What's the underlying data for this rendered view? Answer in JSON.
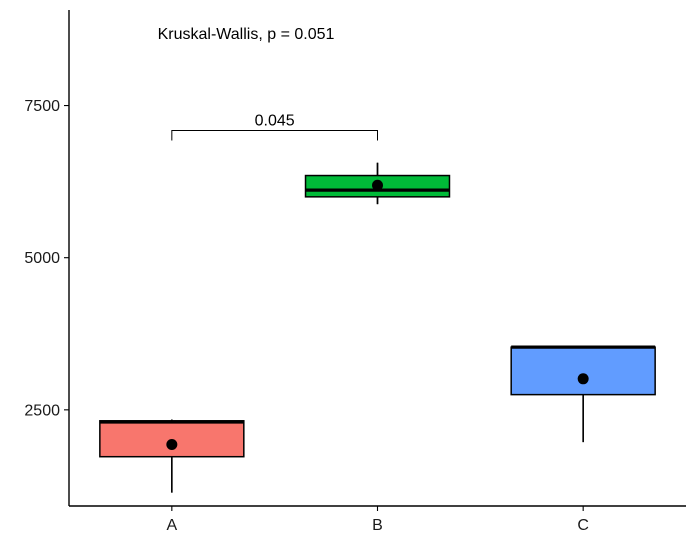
{
  "chart_data": {
    "type": "box",
    "categories": [
      "A",
      "B",
      "C"
    ],
    "ylim": [
      920,
      9070
    ],
    "yticks": [
      2500,
      5000,
      7500
    ],
    "ytick_labels": [
      "2500",
      "5000",
      "7500"
    ],
    "grid": false,
    "legend": "none",
    "boxes": [
      {
        "category": "A",
        "q1": 1730,
        "median": 2300,
        "q3": 2320,
        "mean": 1930,
        "low": 1140,
        "high": 2340,
        "color": "#F8766D"
      },
      {
        "category": "B",
        "q1": 6000,
        "median": 6110,
        "q3": 6350,
        "mean": 6190,
        "low": 5880,
        "high": 6560,
        "color": "#00BA38"
      },
      {
        "category": "C",
        "q1": 2750,
        "median": 3530,
        "q3": 3530,
        "mean": 3010,
        "low": 1970,
        "high": 3530,
        "color": "#619CFF"
      }
    ],
    "global_test": "Kruskal-Wallis, p = 0.051",
    "comparisons": [
      {
        "from": "A",
        "to": "B",
        "label": "0.045",
        "y": 7090
      }
    ]
  }
}
